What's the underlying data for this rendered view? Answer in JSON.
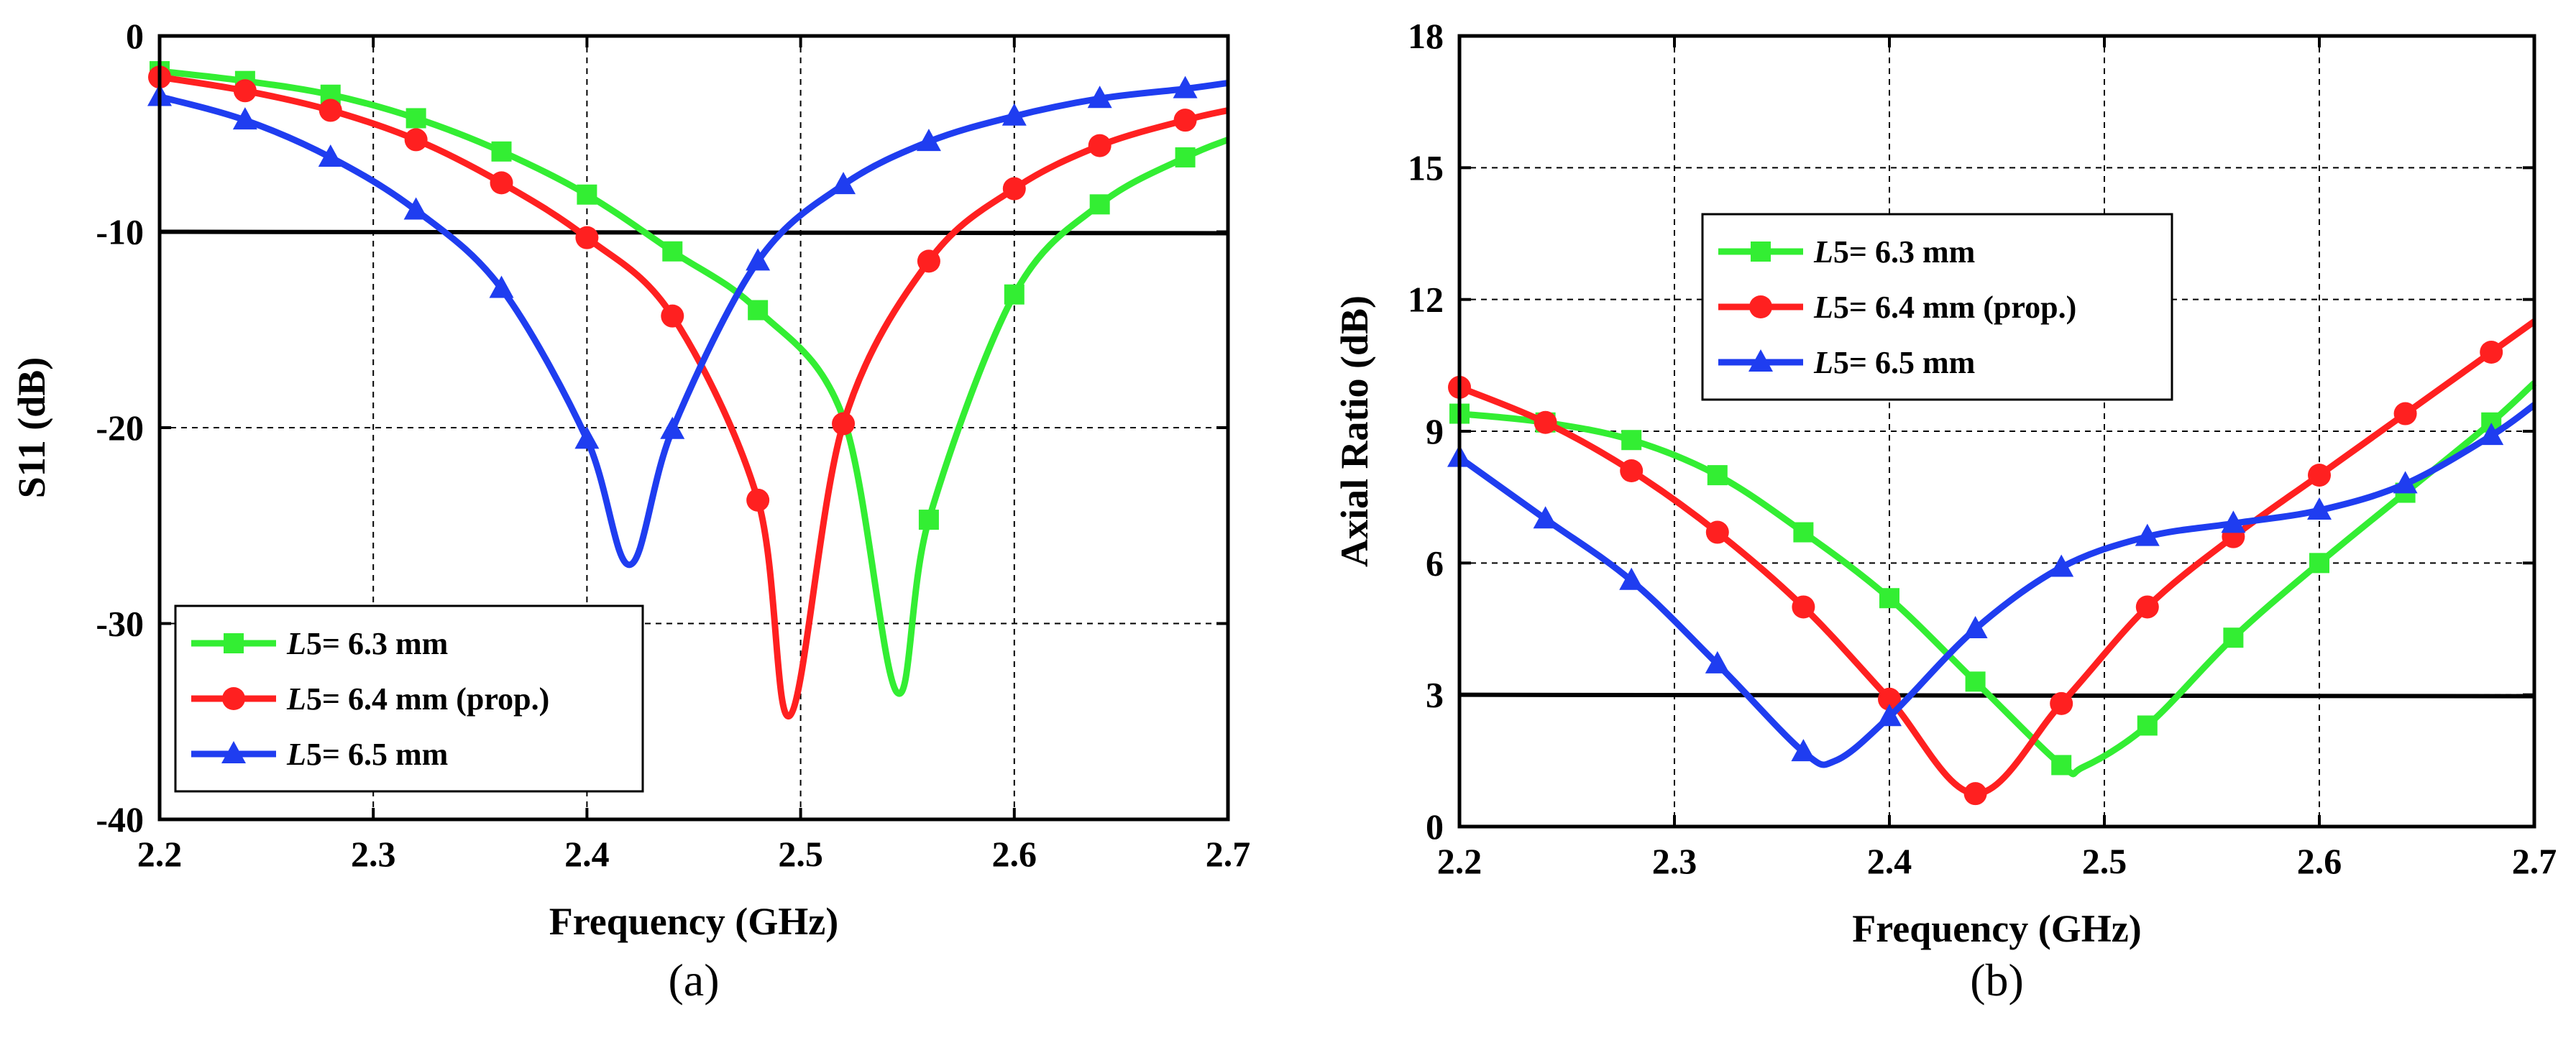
{
  "colors": {
    "green": "#33ee33",
    "red": "#ff2020",
    "blue": "#1f3df0",
    "reference": "#000000"
  },
  "chart_data": [
    {
      "type": "line",
      "panel_label": "(a)",
      "xlabel": "Frequency (GHz)",
      "ylabel": "S11 (dB)",
      "xlim": [
        2.2,
        2.7
      ],
      "ylim": [
        -40,
        0
      ],
      "xticks": [
        "2.2",
        "2.3",
        "2.4",
        "2.5",
        "2.6",
        "2.7"
      ],
      "yticks": [
        "0",
        "-10",
        "-20",
        "-30",
        "-40"
      ],
      "xtick_values": [
        2.2,
        2.3,
        2.4,
        2.5,
        2.6,
        2.7
      ],
      "ytick_values": [
        0,
        -10,
        -20,
        -30,
        -40
      ],
      "grid": true,
      "legend_position": "bottom-left",
      "reference_line": {
        "y": -10
      },
      "series": [
        {
          "name": "L5= 6.3 mm",
          "name_italic": "L",
          "name_rest": "5= 6.3 mm",
          "color_key": "green",
          "marker": "square",
          "x": [
            2.2,
            2.24,
            2.28,
            2.32,
            2.36,
            2.4,
            2.44,
            2.48,
            2.52,
            2.545,
            2.56,
            2.6,
            2.64,
            2.68,
            2.7
          ],
          "y": [
            -1.8,
            -2.3,
            -3.0,
            -4.2,
            -5.9,
            -8.1,
            -11.0,
            -14.0,
            -19.5,
            -33.5,
            -24.7,
            -13.2,
            -8.6,
            -6.2,
            -5.3
          ],
          "marker_indices": [
            0,
            1,
            2,
            3,
            4,
            5,
            6,
            7,
            10,
            11,
            12,
            13
          ]
        },
        {
          "name": "L5= 6.4 mm (prop.)",
          "name_italic": "L",
          "name_rest": "5= 6.4 mm (prop.)",
          "color_key": "red",
          "marker": "circle",
          "x": [
            2.2,
            2.24,
            2.28,
            2.32,
            2.36,
            2.4,
            2.44,
            2.48,
            2.495,
            2.52,
            2.56,
            2.6,
            2.64,
            2.68,
            2.7
          ],
          "y": [
            -2.1,
            -2.8,
            -3.8,
            -5.3,
            -7.5,
            -10.3,
            -14.3,
            -23.7,
            -34.7,
            -19.8,
            -11.5,
            -7.8,
            -5.6,
            -4.3,
            -3.8
          ],
          "marker_indices": [
            0,
            1,
            2,
            3,
            4,
            5,
            6,
            7,
            9,
            10,
            11,
            12,
            13
          ]
        },
        {
          "name": "L5= 6.5 mm",
          "name_italic": "L",
          "name_rest": "5= 6.5 mm",
          "color_key": "blue",
          "marker": "triangle",
          "x": [
            2.2,
            2.24,
            2.28,
            2.32,
            2.36,
            2.4,
            2.42,
            2.44,
            2.48,
            2.52,
            2.56,
            2.6,
            2.64,
            2.68,
            2.7
          ],
          "y": [
            -3.1,
            -4.3,
            -6.2,
            -8.9,
            -12.9,
            -20.6,
            -27.0,
            -20.1,
            -11.5,
            -7.6,
            -5.4,
            -4.1,
            -3.2,
            -2.7,
            -2.4
          ],
          "marker_indices": [
            0,
            1,
            2,
            3,
            4,
            5,
            7,
            8,
            9,
            10,
            11,
            12,
            13
          ]
        }
      ]
    },
    {
      "type": "line",
      "panel_label": "(b)",
      "xlabel": "Frequency (GHz)",
      "ylabel": "Axial Ratio (dB)",
      "xlim": [
        2.2,
        2.7
      ],
      "ylim": [
        0,
        18
      ],
      "xticks": [
        "2.2",
        "2.3",
        "2.4",
        "2.5",
        "2.6",
        "2.7"
      ],
      "yticks": [
        "0",
        "3",
        "6",
        "9",
        "12",
        "15",
        "18"
      ],
      "xtick_values": [
        2.2,
        2.3,
        2.4,
        2.5,
        2.6,
        2.7
      ],
      "ytick_values": [
        0,
        3,
        6,
        9,
        12,
        15,
        18
      ],
      "grid": true,
      "legend_position": "upper-left",
      "reference_line": {
        "y": 3
      },
      "series": [
        {
          "name": "L5= 6.3 mm",
          "name_italic": "L",
          "name_rest": "5= 6.3 mm",
          "color_key": "green",
          "marker": "square",
          "x": [
            2.2,
            2.24,
            2.28,
            2.32,
            2.36,
            2.4,
            2.44,
            2.48,
            2.49,
            2.52,
            2.56,
            2.6,
            2.64,
            2.68,
            2.7
          ],
          "y": [
            9.4,
            9.2,
            8.8,
            8.0,
            6.7,
            5.2,
            3.3,
            1.4,
            1.35,
            2.3,
            4.3,
            6.0,
            7.6,
            9.2,
            10.1
          ],
          "marker_indices": [
            0,
            1,
            2,
            3,
            4,
            5,
            6,
            7,
            9,
            10,
            11,
            12,
            13
          ]
        },
        {
          "name": "L5= 6.4 mm (prop.)",
          "name_italic": "L",
          "name_rest": "5= 6.4 mm (prop.)",
          "color_key": "red",
          "marker": "circle",
          "x": [
            2.2,
            2.24,
            2.28,
            2.32,
            2.36,
            2.4,
            2.44,
            2.48,
            2.52,
            2.56,
            2.6,
            2.64,
            2.68,
            2.7
          ],
          "y": [
            10.0,
            9.2,
            8.1,
            6.7,
            5.0,
            2.9,
            0.75,
            2.8,
            5.0,
            6.6,
            8.0,
            9.4,
            10.8,
            11.5
          ],
          "marker_indices": [
            0,
            1,
            2,
            3,
            4,
            5,
            6,
            7,
            8,
            9,
            10,
            11,
            12
          ]
        },
        {
          "name": "L5= 6.5 mm",
          "name_italic": "L",
          "name_rest": "5= 6.5 mm",
          "color_key": "blue",
          "marker": "triangle",
          "x": [
            2.2,
            2.24,
            2.28,
            2.32,
            2.36,
            2.375,
            2.4,
            2.44,
            2.48,
            2.52,
            2.56,
            2.6,
            2.64,
            2.68,
            2.7
          ],
          "y": [
            8.4,
            7.0,
            5.6,
            3.7,
            1.7,
            1.5,
            2.5,
            4.5,
            5.9,
            6.6,
            6.9,
            7.2,
            7.8,
            8.9,
            9.6
          ],
          "marker_indices": [
            0,
            1,
            2,
            3,
            4,
            6,
            7,
            8,
            9,
            10,
            11,
            12,
            13
          ]
        }
      ]
    }
  ]
}
